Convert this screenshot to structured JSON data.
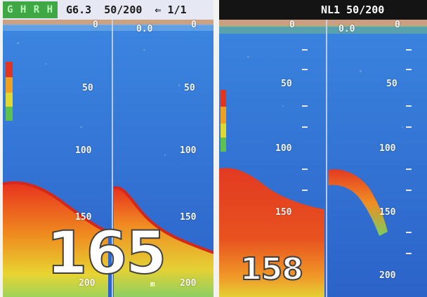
{
  "left_panel": {
    "mode": "G H  R H",
    "header": "G6.3  50/200  ⇐ 1/1",
    "scale_col1": [
      "0",
      "50",
      "100",
      "150",
      "200"
    ],
    "scale_col2": [
      "0.0",
      "0",
      "50",
      "100",
      "150",
      "200"
    ],
    "depth": "165",
    "unit": "m"
  },
  "right_panel": {
    "header": "NL1 50/200",
    "scale_col1": [
      "0",
      "50",
      "100",
      "150"
    ],
    "scale_col2": [
      "0.0",
      "0",
      "50",
      "100",
      "150",
      "200"
    ],
    "depth": "158"
  },
  "colors": {
    "water": "#2f6fd6",
    "bottom_strong": "#e03520",
    "bottom_mid": "#f08a20",
    "bottom_weak": "#e8d230",
    "weak_echo": "#6fcf5a"
  }
}
